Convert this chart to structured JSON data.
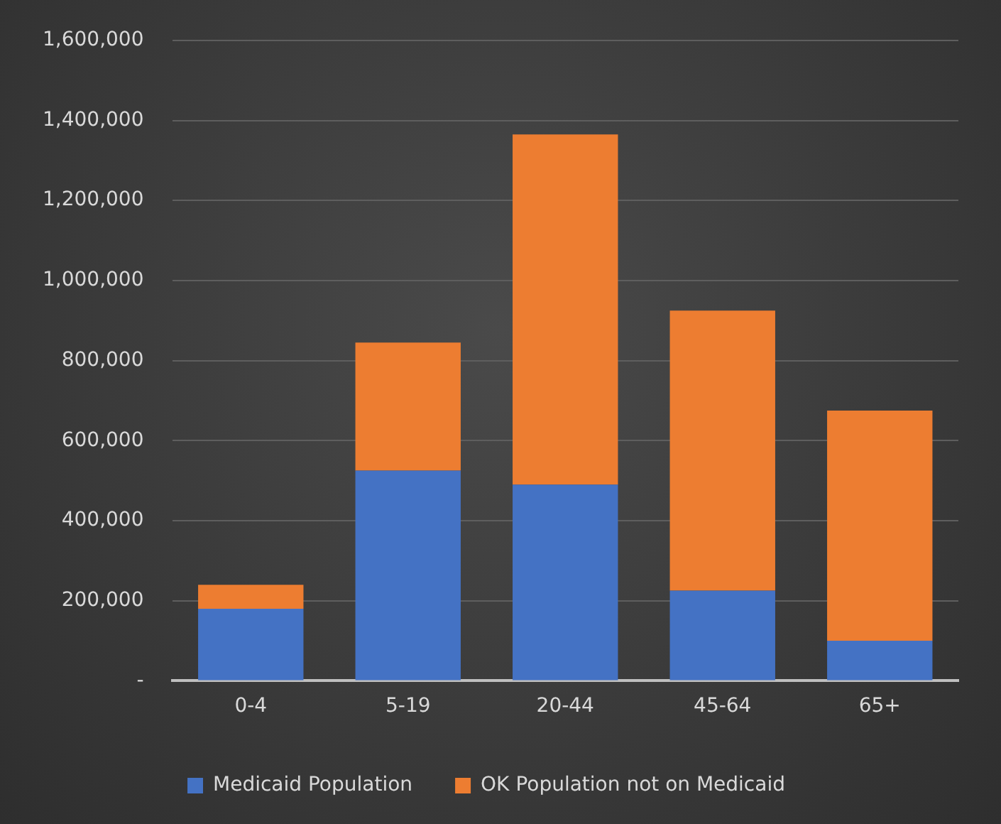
{
  "chart_data": {
    "type": "bar",
    "stacked": true,
    "categories": [
      "0-4",
      "5-19",
      "20-44",
      "45-64",
      "65+"
    ],
    "series": [
      {
        "name": "Medicaid Population",
        "color": "#4472c4",
        "values": [
          180000,
          525000,
          490000,
          225000,
          100000
        ]
      },
      {
        "name": "OK Population not on Medicaid",
        "color": "#ed7d31",
        "values": [
          60000,
          320000,
          875000,
          700000,
          575000
        ]
      }
    ],
    "ylim": [
      0,
      1600000
    ],
    "yticks": [
      {
        "value": 0,
        "label": "-"
      },
      {
        "value": 200000,
        "label": "200,000"
      },
      {
        "value": 400000,
        "label": "400,000"
      },
      {
        "value": 600000,
        "label": "600,000"
      },
      {
        "value": 800000,
        "label": "800,000"
      },
      {
        "value": 1000000,
        "label": "1,000,000"
      },
      {
        "value": 1200000,
        "label": "1,200,000"
      },
      {
        "value": 1400000,
        "label": "1,400,000"
      },
      {
        "value": 1600000,
        "label": "1,600,000"
      }
    ],
    "grid": "y",
    "legend": "bottom"
  }
}
